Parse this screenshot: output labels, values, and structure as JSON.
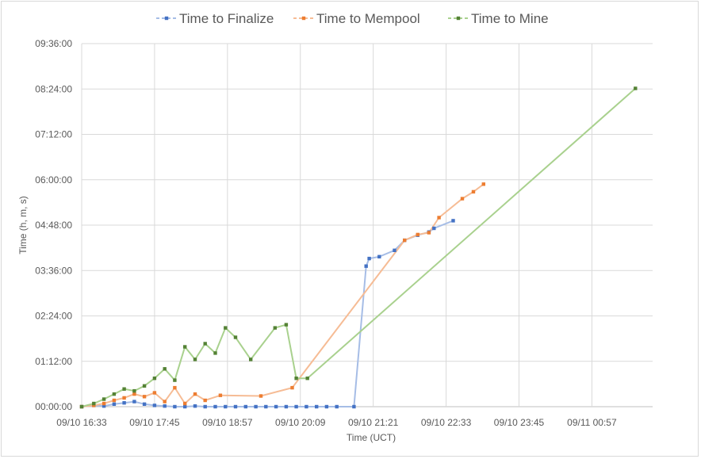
{
  "chart_data": {
    "type": "line",
    "title": "",
    "xlabel": "Time (UCT)",
    "ylabel": "Time (h, m, s)",
    "x_ticks": [
      "09/10 16:33",
      "09/10 17:45",
      "09/10 18:57",
      "09/10 20:09",
      "09/10 21:21",
      "09/10 22:33",
      "09/10 23:45",
      "09/11 00:57"
    ],
    "x_range_minutes": [
      993,
      1557
    ],
    "y_ticks": [
      "00:00:00",
      "01:12:00",
      "02:24:00",
      "03:36:00",
      "04:48:00",
      "06:00:00",
      "07:12:00",
      "08:24:00",
      "09:36:00"
    ],
    "y_range_minutes": [
      0,
      576
    ],
    "grid": true,
    "legend_position": "top",
    "series": [
      {
        "name": "Time to Finalize",
        "color": "#4472c4",
        "x": [
          993,
          1005,
          1015,
          1025,
          1035,
          1045,
          1055,
          1065,
          1075,
          1085,
          1095,
          1105,
          1115,
          1125,
          1135,
          1145,
          1155,
          1165,
          1175,
          1185,
          1195,
          1205,
          1215,
          1225,
          1235,
          1245,
          1262,
          1274,
          1277,
          1287,
          1302,
          1312,
          1325,
          1336,
          1341,
          1360
        ],
        "y": [
          0,
          2,
          1,
          4,
          6,
          8,
          4,
          2,
          1,
          0,
          0,
          1,
          0,
          0,
          0,
          0,
          0,
          0,
          0,
          0,
          0,
          0,
          0,
          0,
          0,
          0,
          0,
          223,
          235,
          238,
          248,
          264,
          272,
          277,
          283,
          295
        ]
      },
      {
        "name": "Time to Mempool",
        "color": "#ed7d31",
        "x": [
          993,
          1005,
          1015,
          1025,
          1035,
          1045,
          1055,
          1065,
          1075,
          1085,
          1095,
          1105,
          1115,
          1130,
          1170,
          1201,
          1312,
          1325,
          1336,
          1346,
          1369,
          1380,
          1390
        ],
        "y": [
          0,
          2,
          5,
          10,
          14,
          20,
          16,
          22,
          8,
          30,
          5,
          20,
          10,
          18,
          17,
          30,
          264,
          273,
          276,
          300,
          330,
          341,
          353
        ]
      },
      {
        "name": "Time to Mine",
        "color": "#548235",
        "x": [
          993,
          1005,
          1015,
          1025,
          1035,
          1045,
          1055,
          1065,
          1075,
          1085,
          1095,
          1105,
          1115,
          1125,
          1135,
          1145,
          1160,
          1184,
          1195,
          1205,
          1216,
          1540
        ],
        "y": [
          0,
          5,
          12,
          20,
          28,
          25,
          33,
          45,
          60,
          42,
          95,
          75,
          100,
          85,
          125,
          110,
          75,
          125,
          130,
          45,
          45,
          505
        ]
      }
    ]
  }
}
